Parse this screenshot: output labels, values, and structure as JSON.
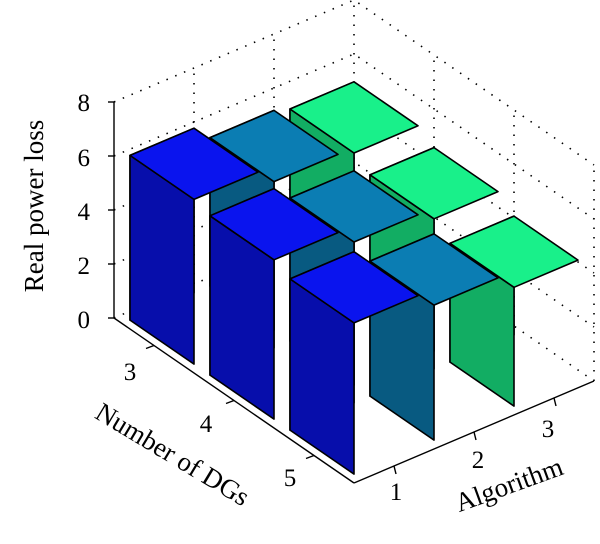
{
  "chart_data": {
    "type": "bar3d",
    "xlabel": "Number of DGs",
    "ylabel": "Algorithm",
    "zlabel": "Real power loss",
    "x_categories": [
      "3",
      "4",
      "5"
    ],
    "y_categories": [
      "1",
      "2",
      "3"
    ],
    "zlim": [
      0,
      8
    ],
    "z_ticks": [
      "0",
      "2",
      "4",
      "6",
      "8"
    ],
    "grid": true,
    "series": [
      {
        "values": [
          6.1,
          5.9,
          5.6
        ],
        "color": "#0a14ee"
      },
      {
        "values": [
          5.5,
          5.3,
          5.0
        ],
        "color": "#0b7db3"
      },
      {
        "values": [
          5.3,
          4.9,
          4.4
        ],
        "color": "#19f08a"
      }
    ]
  }
}
